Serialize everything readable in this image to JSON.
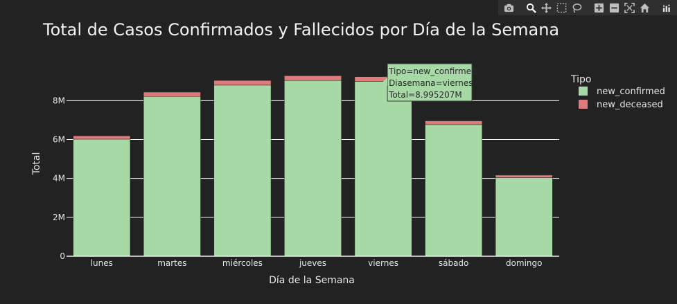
{
  "modebar": {
    "icons": [
      "camera-icon",
      "zoom-icon",
      "pan-icon",
      "box-select-icon",
      "lasso-icon",
      "zoom-in-icon",
      "zoom-out-icon",
      "autoscale-icon",
      "reset-axes-icon",
      "plotly-logo-icon"
    ]
  },
  "chart_data": {
    "type": "bar",
    "stacked": true,
    "title": "Total de Casos Confirmados y Fallecidos por Día de la Semana",
    "xlabel": "Día de la Semana",
    "ylabel": "Total",
    "categories": [
      "lunes",
      "martes",
      "miércoles",
      "jueves",
      "viernes",
      "sábado",
      "domingo"
    ],
    "series": [
      {
        "name": "new_confirmed",
        "color": "#a6d9a6",
        "values": [
          6.02,
          8.22,
          8.8,
          9.04,
          8.995207,
          6.77,
          4.04
        ]
      },
      {
        "name": "new_deceased",
        "color": "#e07b7b",
        "values": [
          0.17,
          0.22,
          0.24,
          0.24,
          0.24,
          0.19,
          0.13
        ]
      }
    ],
    "ylim": [
      0,
      9.9
    ],
    "yticks": [
      0,
      2,
      4,
      6,
      8
    ],
    "ytick_labels": [
      "0",
      "2M",
      "4M",
      "6M",
      "8M"
    ],
    "grid": true,
    "legend": {
      "title": "Tipo",
      "placement": "right"
    },
    "tooltip": {
      "category_index": 4,
      "series_index": 0,
      "lines": [
        "Tipo=new_confirmed",
        "Diasemana=viernes",
        "Total=8.995207M"
      ]
    }
  }
}
